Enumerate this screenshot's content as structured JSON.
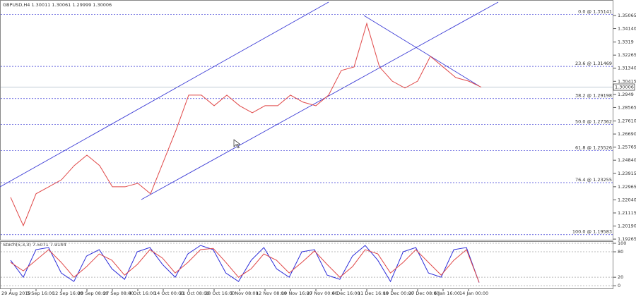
{
  "chart_data": [
    {
      "type": "line",
      "title": "GBPUSD,H4  1.30011 1.30061 1.29999 1.30006",
      "color": "#e04848",
      "categories": [
        "29 Aug 2019",
        null,
        "5 Sep 16:00",
        null,
        "12 Sep 16:00",
        null,
        "20 Sep 08:00",
        null,
        "27 Sep 08:00",
        null,
        "4 Oct 16:00",
        null,
        "14 Oct 00:00",
        null,
        "21 Oct 08:00",
        null,
        "28 Oct 16:00",
        null,
        "5 Nov 08:00",
        null,
        "12 Nov 08:00",
        null,
        "19 Nov 16:00",
        null,
        "27 Nov 00:00",
        null,
        "4 Dec 16:00",
        null,
        "11 Dec 16:00",
        null,
        "19 Dec 00:00",
        null,
        "27 Dec 08:00",
        null,
        "6 Jan 16:00",
        null,
        "14 Jan 00:00",
        null
      ],
      "values": [
        1.2222,
        1.2022,
        1.2247,
        1.2296,
        1.2346,
        1.2446,
        1.252,
        1.2446,
        1.2296,
        1.2296,
        1.2321,
        1.2247,
        1.2471,
        1.2695,
        1.2944,
        1.2944,
        1.2869,
        1.2944,
        1.2869,
        1.2819,
        1.2869,
        1.2869,
        1.2944,
        1.2894,
        1.2869,
        1.2944,
        1.3118,
        1.3143,
        1.345,
        1.3143,
        1.3043,
        1.2994,
        1.3043,
        1.3218,
        1.3143,
        1.3068,
        1.3043,
        1.30006
      ],
      "ylim": [
        1.1922,
        1.3616
      ],
      "yticks": [
        1.35065,
        {
          "value": 1.3414,
          "label": "1.34140"
        },
        1.3319,
        1.32265,
        {
          "value": 1.3134,
          "label": "1.31340"
        },
        1.30415,
        1.2949,
        1.28565,
        {
          "value": 1.2761,
          "label": "1.27610"
        },
        {
          "value": 1.2669,
          "label": "1.26690"
        },
        1.25765,
        {
          "value": 1.2484,
          "label": "1.24840"
        },
        1.23915,
        1.22965,
        {
          "value": 1.2204,
          "label": "1.22040"
        },
        1.21115,
        {
          "value": 1.2019,
          "label": "1.20190"
        },
        1.19265
      ],
      "fib_levels": [
        {
          "label": "0.0 @ 1.35141",
          "value": 1.35141
        },
        {
          "label": "23.6 @ 1.31469",
          "value": 1.31469
        },
        {
          "label": "38.2 @ 1.29198",
          "value": 1.29198
        },
        {
          "label": "50.0 @ 1.27362",
          "value": 1.27362
        },
        {
          "label": "61.8 @ 1.25526",
          "value": 1.25526
        },
        {
          "label": "76.4 @ 1.23255",
          "value": 1.23255
        },
        {
          "label": "100.0 @ 1.19583",
          "value": 1.19583
        }
      ],
      "current_price": {
        "value": 1.30006,
        "label": "1.30006"
      }
    },
    {
      "type": "line",
      "title": "Stoch(5,3,3) 7.5071 7.9144",
      "ylim": [
        -8,
        105
      ],
      "yticks": [
        0,
        20,
        80,
        100
      ],
      "series": [
        {
          "name": "%K",
          "color": "#2b2bd9",
          "values": [
            60,
            20,
            85,
            90,
            30,
            10,
            70,
            85,
            40,
            15,
            80,
            90,
            50,
            20,
            75,
            95,
            85,
            30,
            10,
            60,
            90,
            40,
            20,
            80,
            85,
            25,
            15,
            70,
            95,
            60,
            10,
            80,
            90,
            30,
            20,
            85,
            90,
            7.5071
          ]
        },
        {
          "name": "%D",
          "color": "#e04848",
          "values": [
            55,
            35,
            60,
            85,
            55,
            20,
            45,
            75,
            60,
            25,
            50,
            85,
            65,
            30,
            55,
            85,
            88,
            55,
            20,
            40,
            75,
            60,
            30,
            55,
            82,
            50,
            20,
            45,
            85,
            75,
            30,
            55,
            85,
            55,
            25,
            60,
            85,
            7.9144
          ]
        }
      ]
    }
  ]
}
